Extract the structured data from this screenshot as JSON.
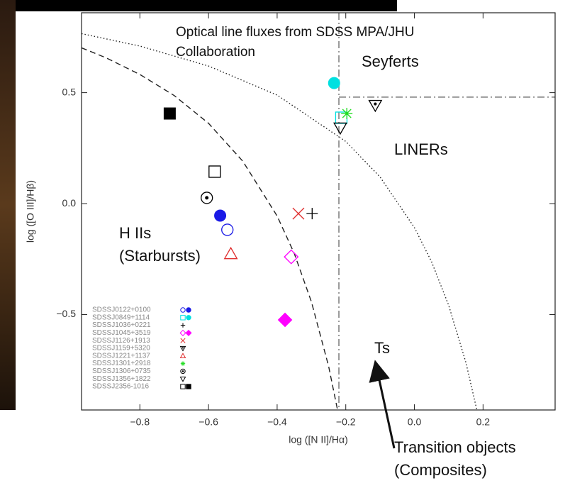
{
  "chart_data": {
    "type": "scatter",
    "title": [
      "Optical line fluxes from SDSS MPA/JHU",
      "Collaboration"
    ],
    "x_label": "log ([N II]/Hα)",
    "y_label": "log ([O III]/Hβ)",
    "xlim": [
      -0.97,
      0.41
    ],
    "ylim": [
      -0.93,
      0.86
    ],
    "xticks": [
      {
        "value": -0.8,
        "label": "−0.8"
      },
      {
        "value": -0.6,
        "label": "−0.6"
      },
      {
        "value": -0.4,
        "label": "−0.4"
      },
      {
        "value": -0.2,
        "label": "−0.2"
      },
      {
        "value": 0,
        "label": "0.0"
      },
      0.2
    ],
    "yticks": [
      0.5,
      {
        "value": 0,
        "label": "0.0"
      },
      {
        "value": -0.5,
        "label": "−0.5"
      }
    ],
    "series": [
      {
        "name": "SDSSJ0122+0100",
        "color": "#1a1ae6",
        "markers": [
          "circle-open",
          "circle-filled"
        ],
        "x": [
          -0.545,
          -0.566
        ],
        "values": [
          -0.118,
          -0.054
        ]
      },
      {
        "name": "SDSSJ0849+1114",
        "color": "#00e0e0",
        "markers": [
          "square-open",
          "circle-filled"
        ],
        "x": [
          -0.213,
          -0.234
        ],
        "values": [
          0.387,
          0.543
        ]
      },
      {
        "name": "SDSSJ1036+0221",
        "color": "#000000",
        "markers": [
          "plus"
        ],
        "x": [
          -0.298
        ],
        "values": [
          -0.045
        ]
      },
      {
        "name": "SDSSJ1045+3519",
        "color": "#ff00ff",
        "markers": [
          "diamond-open",
          "diamond-filled"
        ],
        "x": [
          -0.359,
          -0.377
        ],
        "values": [
          -0.24,
          -0.524
        ]
      },
      {
        "name": "SDSSJ1126+1913",
        "color": "#e03030",
        "markers": [
          "x"
        ],
        "x": [
          -0.338
        ],
        "values": [
          -0.045
        ]
      },
      {
        "name": "SDSSJ1159+5320",
        "color": "#000000",
        "markers": [
          "triangle-down-dot"
        ],
        "x": [
          -0.114
        ],
        "values": [
          0.444
        ]
      },
      {
        "name": "SDSSJ1221+1137",
        "color": "#e03030",
        "markers": [
          "triangle-open"
        ],
        "x": [
          -0.535
        ],
        "values": [
          -0.227
        ]
      },
      {
        "name": "SDSSJ1301+2918",
        "color": "#22dd22",
        "markers": [
          "star"
        ],
        "x": [
          -0.197
        ],
        "values": [
          0.406
        ]
      },
      {
        "name": "SDSSJ1306+0735",
        "color": "#000000",
        "markers": [
          "circle-dot"
        ],
        "x": [
          -0.605
        ],
        "values": [
          0.026
        ]
      },
      {
        "name": "SDSSJ1356+1822",
        "color": "#000000",
        "markers": [
          "triangle-down-open"
        ],
        "x": [
          -0.216
        ],
        "values": [
          0.342
        ]
      },
      {
        "name": "SDSSJ2356-1016",
        "color": "#000000",
        "markers": [
          "square-open",
          "square-filled"
        ],
        "x": [
          -0.582,
          -0.713
        ],
        "values": [
          0.144,
          0.406
        ]
      }
    ],
    "curves": [
      {
        "style": "dashed",
        "x": [
          -0.97,
          -0.9,
          -0.8,
          -0.7,
          -0.6,
          -0.5,
          -0.4,
          -0.35,
          -0.3,
          -0.25,
          -0.224
        ],
        "values": [
          0.702,
          0.658,
          0.582,
          0.487,
          0.362,
          0.191,
          -0.056,
          -0.225,
          -0.443,
          -0.733,
          -0.93
        ]
      },
      {
        "style": "dotted",
        "x": [
          -0.97,
          -0.8,
          -0.6,
          -0.4,
          -0.2,
          -0.1,
          0,
          0.05,
          0.1,
          0.15,
          0.182
        ],
        "values": [
          0.766,
          0.71,
          0.62,
          0.489,
          0.28,
          0.12,
          -0.108,
          -0.262,
          -0.459,
          -0.716,
          -0.93
        ]
      },
      {
        "style": "dashdot",
        "x": [
          -0.22,
          -0.22
        ],
        "values": [
          0.86,
          -0.93
        ]
      },
      {
        "style": "dashdot",
        "x": [
          -0.22,
          0.41
        ],
        "values": [
          0.48,
          0.48
        ]
      }
    ],
    "annotations": [
      "Seyferts",
      "LINERs",
      "H IIs",
      "(Starbursts)",
      "Ts",
      "Transition objects",
      "(Composites)"
    ]
  }
}
